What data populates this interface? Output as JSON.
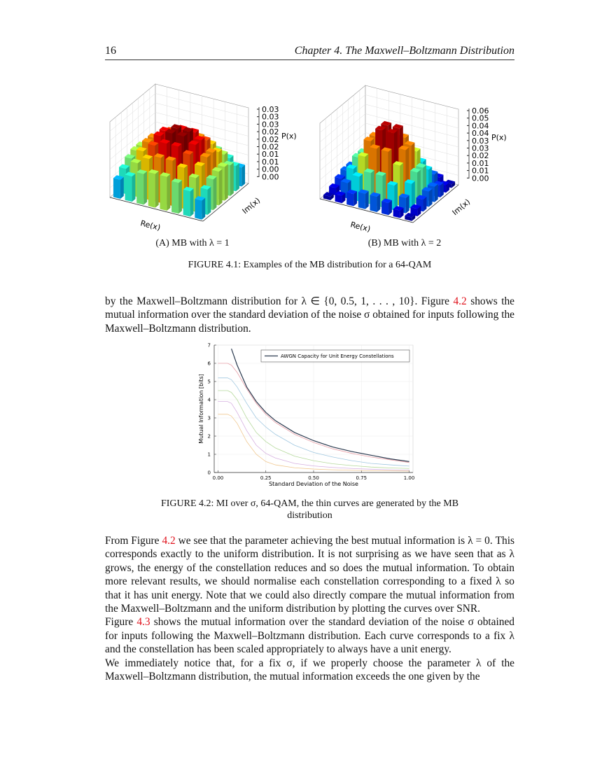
{
  "header": {
    "page": "16",
    "chapter": "Chapter 4.  The Maxwell–Boltzmann Distribution"
  },
  "figure_4_1": {
    "panels": [
      {
        "zticks": [
          "0.03",
          "0.03",
          "0.03",
          "0.02",
          "0.02",
          "0.02",
          "0.01",
          "0.01",
          "0.00",
          "0.00"
        ],
        "zlabel": "P(x)",
        "xlabel": "Re(x)",
        "ylabel": "Im(x)",
        "subcaption": "(A) MB with λ = 1"
      },
      {
        "zticks": [
          "0.06",
          "0.05",
          "0.04",
          "0.04",
          "0.03",
          "0.03",
          "0.02",
          "0.01",
          "0.01",
          "0.00"
        ],
        "zlabel": "P(x)",
        "xlabel": "Re(x)",
        "ylabel": "Im(x)",
        "subcaption": "(B) MB with λ = 2"
      }
    ],
    "caption": "FIGURE 4.1: Examples of the MB distribution for a 64-QAM"
  },
  "paragraphs": [
    [
      "by the Maxwell–Boltzmann distribution for λ ∈ {0, 0.5, 1, . . . , 10}. Figure ",
      "4.2",
      " shows the mutual information over the standard deviation of the noise σ obtained for inputs following the Maxwell–Boltzmann distribution."
    ],
    [
      "From Figure ",
      "4.2",
      " we see that the parameter achieving the best mutual information is λ = 0. This corresponds exactly to the uniform distribution. It is not surprising as we have seen that as λ grows, the energy of the constellation reduces and so does the mutual information. To obtain more relevant results, we should normalise each constellation corresponding to a fixed λ so that it has unit energy. Note that we could also directly compare the mutual information from the Maxwell–Boltzmann and the uniform distribution by plotting the curves over SNR."
    ],
    [
      "Figure ",
      "4.3",
      " shows the mutual information over the standard deviation of the noise σ obtained for inputs following the Maxwell–Boltzmann distribution. Each curve corresponds to a fix λ and the constellation has been scaled appropriately to always have a unit energy."
    ],
    [
      "We immediately notice that, for a fix σ, if we properly choose the parameter λ of the Maxwell–Boltzmann distribution, the mutual information exceeds the one given by the"
    ]
  ],
  "chart_data": {
    "type": "line",
    "caption": "FIGURE 4.2: MI over σ, 64-QAM, the thin curves are generated by the MB distribution",
    "xlabel": "Standard Deviation of the Noise",
    "ylabel": "Mutual Information [bits]",
    "x": [
      0,
      0.05,
      0.07,
      0.1,
      0.15,
      0.2,
      0.25,
      0.3,
      0.4,
      0.5,
      0.6,
      0.7,
      0.8,
      0.9,
      1.0
    ],
    "xlim": [
      -0.02,
      1.02
    ],
    "ylim": [
      0,
      7
    ],
    "xticks": [
      {
        "value": 0,
        "label": "0.00"
      },
      {
        "value": 0.25,
        "label": "0.25"
      },
      {
        "value": 0.5,
        "label": "0.50"
      },
      {
        "value": 0.75,
        "label": "0.75"
      },
      {
        "value": 1,
        "label": "1.00"
      }
    ],
    "yticks": [
      0,
      1,
      2,
      3,
      4,
      5,
      6,
      7
    ],
    "grid": true,
    "legend": "upper right",
    "series": [
      {
        "name": "AWGN Capacity for Unit Energy Constellations",
        "color": "#2b3a4f",
        "values": [
          null,
          null,
          6.8,
          5.9,
          4.7,
          3.9,
          3.3,
          2.85,
          2.2,
          1.75,
          1.4,
          1.15,
          0.95,
          0.75,
          0.6
        ]
      },
      {
        "color": "#e8a0a8",
        "values": [
          6,
          6,
          5.9,
          5.5,
          4.6,
          3.8,
          3.2,
          2.75,
          2.1,
          1.65,
          1.3,
          1.05,
          0.85,
          0.7,
          0.55
        ]
      },
      {
        "color": "#9fc7e0",
        "values": [
          5.2,
          5.2,
          5.1,
          4.7,
          3.8,
          3.0,
          2.5,
          2.1,
          1.5,
          1.1,
          0.85,
          0.65,
          0.5,
          0.42,
          0.35
        ]
      },
      {
        "color": "#b5d99c",
        "values": [
          4.5,
          4.5,
          4.4,
          4.0,
          3.0,
          2.2,
          1.7,
          1.35,
          0.9,
          0.65,
          0.48,
          0.38,
          0.3,
          0.25,
          0.22
        ]
      },
      {
        "color": "#d6b0e0",
        "values": [
          3.9,
          3.9,
          3.8,
          3.3,
          2.3,
          1.5,
          1.05,
          0.8,
          0.5,
          0.36,
          0.28,
          0.22,
          0.18,
          0.15,
          0.13
        ]
      },
      {
        "color": "#f0c890",
        "values": [
          3.2,
          3.2,
          3.1,
          2.7,
          1.7,
          1.0,
          0.6,
          0.42,
          0.26,
          0.19,
          0.15,
          0.12,
          0.1,
          0.09,
          0.08
        ]
      }
    ]
  }
}
